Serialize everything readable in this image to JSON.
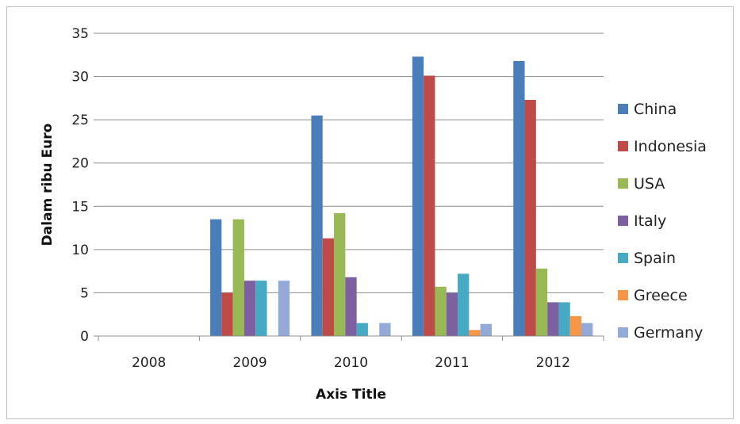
{
  "chart_data": {
    "type": "bar",
    "categories": [
      "2008",
      "2009",
      "2010",
      "2011",
      "2012"
    ],
    "series": [
      {
        "name": "China",
        "color": "#4a7ebb",
        "values": [
          0,
          13.5,
          25.5,
          32.3,
          31.8
        ]
      },
      {
        "name": "Indonesia",
        "color": "#be4b48",
        "values": [
          0,
          5.0,
          11.3,
          30.1,
          27.3
        ]
      },
      {
        "name": "USA",
        "color": "#98b954",
        "values": [
          0,
          13.5,
          14.2,
          5.7,
          7.8
        ]
      },
      {
        "name": "Italy",
        "color": "#7d60a0",
        "values": [
          0,
          6.4,
          6.8,
          5.0,
          3.9
        ]
      },
      {
        "name": "Spain",
        "color": "#46aac5",
        "values": [
          0,
          6.4,
          1.5,
          7.2,
          3.9
        ]
      },
      {
        "name": "Greece",
        "color": "#f79646",
        "values": [
          0,
          0,
          0,
          0.7,
          2.3
        ]
      },
      {
        "name": "Germany",
        "color": "#93a9d8",
        "values": [
          0,
          6.4,
          1.5,
          1.4,
          1.5
        ]
      }
    ],
    "title": "",
    "xlabel": "Axis Title",
    "ylabel": "Dalam ribu Euro",
    "ylim": [
      0,
      35
    ],
    "yticks": [
      "0",
      "5",
      "10",
      "15",
      "20",
      "25",
      "30",
      "35"
    ],
    "grid": true,
    "legend": "right"
  }
}
